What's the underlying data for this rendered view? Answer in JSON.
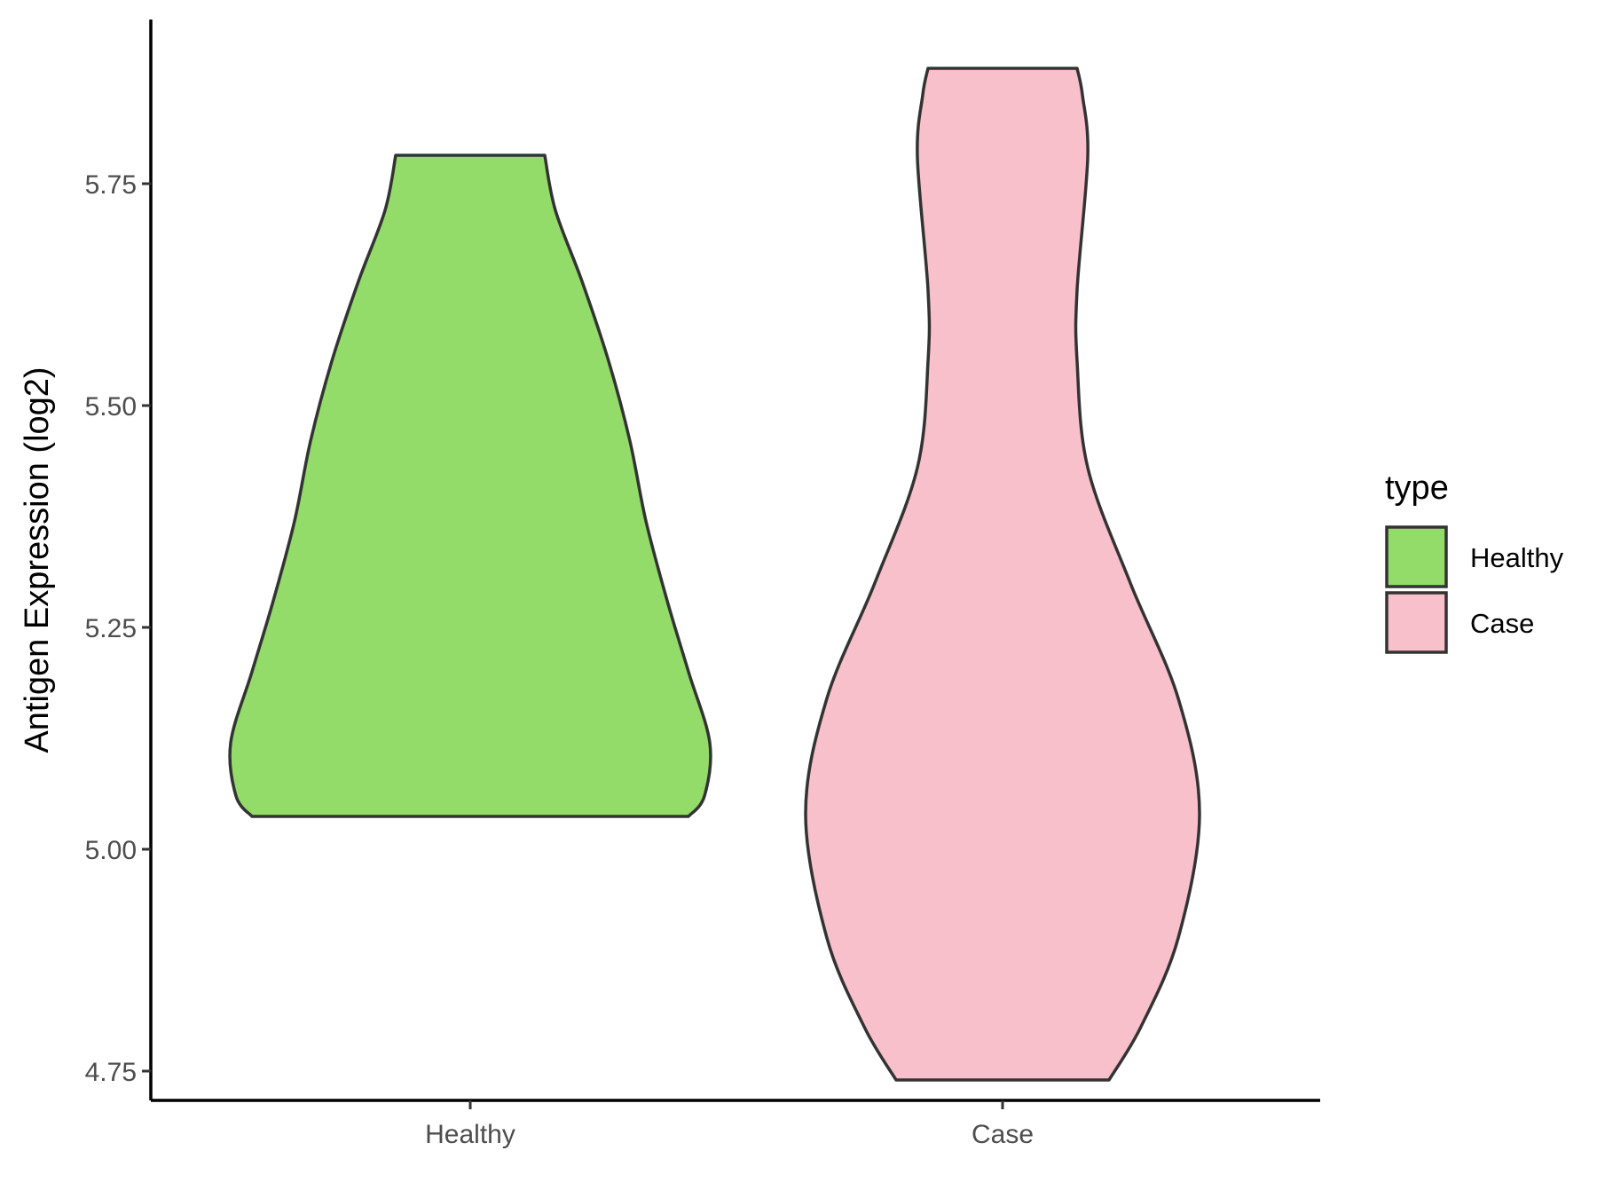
{
  "chart_data": {
    "type": "violin",
    "title": "",
    "xlabel": "",
    "ylabel": "Antigen Expression (log2)",
    "ylim": [
      4.68,
      5.94
    ],
    "yticks": [
      4.75,
      5.0,
      5.25,
      5.5,
      5.75
    ],
    "ytick_labels": [
      "4.75",
      "5.00",
      "5.25",
      "5.50",
      "5.75"
    ],
    "categories": [
      "Healthy",
      "Case"
    ],
    "grid": false,
    "legend": {
      "title": "type",
      "position": "right",
      "entries": [
        "Healthy",
        "Case"
      ]
    },
    "series": [
      {
        "name": "Healthy",
        "color": "#93DC6A",
        "min": 5.037,
        "max": 5.782,
        "density_profile": [
          {
            "y": 5.037,
            "half_width": 0.41
          },
          {
            "y": 5.06,
            "half_width": 0.44
          },
          {
            "y": 5.12,
            "half_width": 0.45
          },
          {
            "y": 5.2,
            "half_width": 0.41
          },
          {
            "y": 5.28,
            "half_width": 0.37
          },
          {
            "y": 5.37,
            "half_width": 0.33
          },
          {
            "y": 5.46,
            "half_width": 0.3
          },
          {
            "y": 5.55,
            "half_width": 0.26
          },
          {
            "y": 5.64,
            "half_width": 0.21
          },
          {
            "y": 5.72,
            "half_width": 0.16
          },
          {
            "y": 5.782,
            "half_width": 0.14
          }
        ]
      },
      {
        "name": "Case",
        "color": "#F8C0CB",
        "min": 4.74,
        "max": 5.88,
        "density_profile": [
          {
            "y": 4.74,
            "half_width": 0.2
          },
          {
            "y": 4.8,
            "half_width": 0.26
          },
          {
            "y": 4.9,
            "half_width": 0.33
          },
          {
            "y": 5.04,
            "half_width": 0.37
          },
          {
            "y": 5.17,
            "half_width": 0.33
          },
          {
            "y": 5.3,
            "half_width": 0.24
          },
          {
            "y": 5.43,
            "half_width": 0.16
          },
          {
            "y": 5.55,
            "half_width": 0.14
          },
          {
            "y": 5.63,
            "half_width": 0.14
          },
          {
            "y": 5.78,
            "half_width": 0.16
          },
          {
            "y": 5.85,
            "half_width": 0.15
          },
          {
            "y": 5.88,
            "half_width": 0.14
          }
        ]
      }
    ]
  }
}
